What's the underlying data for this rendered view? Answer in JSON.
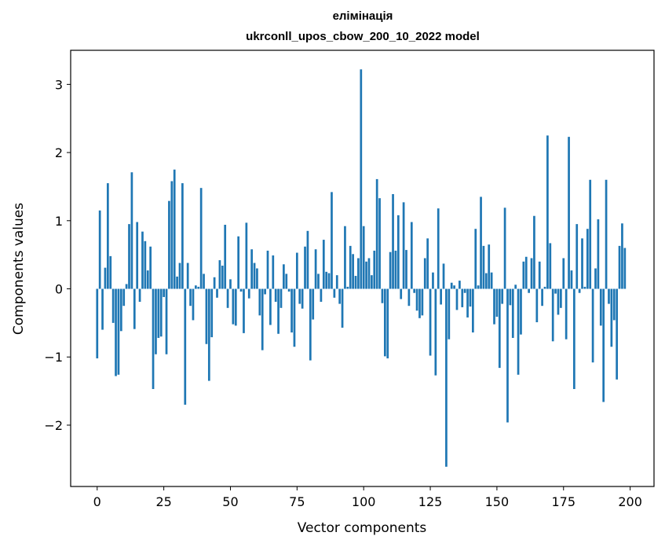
{
  "chart_data": {
    "type": "bar",
    "title_line1": "елімінація",
    "title_line2": "ukrconll_upos_cbow_200_10_2022 model",
    "xlabel": "Vector components",
    "ylabel": "Components values",
    "xlim": [
      -9.95,
      208.95
    ],
    "ylim": [
      -2.9,
      3.5
    ],
    "xticks": [
      0,
      25,
      50,
      75,
      100,
      125,
      150,
      175,
      200
    ],
    "yticks": [
      -2,
      -1,
      0,
      1,
      2,
      3
    ],
    "ytick_labels": [
      "−2",
      "−1",
      "0",
      "1",
      "2",
      "3"
    ],
    "bar_color": "#1f77b4",
    "values": [
      -1.02,
      1.15,
      -0.6,
      0.31,
      1.55,
      0.48,
      -0.5,
      -1.28,
      -1.26,
      -0.62,
      -0.25,
      0.07,
      0.95,
      1.71,
      -0.59,
      0.98,
      -0.19,
      0.84,
      0.7,
      0.27,
      0.62,
      -1.47,
      -0.96,
      -0.72,
      -0.7,
      -0.12,
      -0.96,
      1.29,
      1.58,
      1.75,
      0.18,
      0.38,
      1.55,
      -1.7,
      0.38,
      -0.25,
      -0.46,
      0.05,
      0.03,
      1.48,
      0.22,
      -0.81,
      -1.35,
      -0.71,
      0.17,
      -0.13,
      0.42,
      0.34,
      0.94,
      -0.28,
      0.14,
      -0.52,
      -0.54,
      0.77,
      -0.04,
      -0.65,
      0.97,
      -0.14,
      0.58,
      0.38,
      0.3,
      -0.39,
      -0.9,
      -0.08,
      0.56,
      -0.53,
      0.49,
      -0.19,
      -0.66,
      -0.28,
      0.36,
      0.22,
      -0.04,
      -0.64,
      -0.85,
      0.53,
      -0.22,
      -0.29,
      0.62,
      0.85,
      -1.05,
      -0.45,
      0.58,
      0.22,
      -0.19,
      0.72,
      0.25,
      0.23,
      1.42,
      -0.13,
      0.2,
      -0.22,
      -0.57,
      0.92,
      0.03,
      0.63,
      0.51,
      0.19,
      0.45,
      3.22,
      0.92,
      0.4,
      0.45,
      0.2,
      0.56,
      1.61,
      1.33,
      -0.21,
      -0.99,
      -1.02,
      0.54,
      1.39,
      0.56,
      1.08,
      -0.15,
      1.27,
      0.57,
      -0.25,
      0.98,
      -0.06,
      -0.32,
      -0.43,
      -0.39,
      0.45,
      0.74,
      -0.98,
      0.24,
      -1.27,
      1.18,
      -0.23,
      0.37,
      -2.61,
      -0.74,
      0.09,
      0.05,
      -0.31,
      0.12,
      -0.27,
      -0.06,
      -0.42,
      -0.26,
      -0.64,
      0.88,
      0.05,
      1.35,
      0.63,
      0.23,
      0.65,
      0.24,
      -0.52,
      -0.41,
      -1.16,
      -0.22,
      1.19,
      -1.96,
      -0.24,
      -0.72,
      0.06,
      -1.26,
      -0.67,
      0.4,
      0.47,
      -0.06,
      0.45,
      1.07,
      -0.49,
      0.4,
      -0.25,
      0.03,
      2.25,
      0.67,
      -0.77,
      -0.07,
      -0.38,
      -0.28,
      0.45,
      -0.74,
      2.23,
      0.27,
      -1.47,
      0.95,
      -0.06,
      0.74,
      0.03,
      0.88,
      1.6,
      -1.08,
      0.3,
      1.02,
      -0.54,
      -1.66,
      1.6,
      -0.22,
      -0.85,
      -0.46,
      -1.33,
      0.63,
      0.96,
      0.6
    ]
  }
}
